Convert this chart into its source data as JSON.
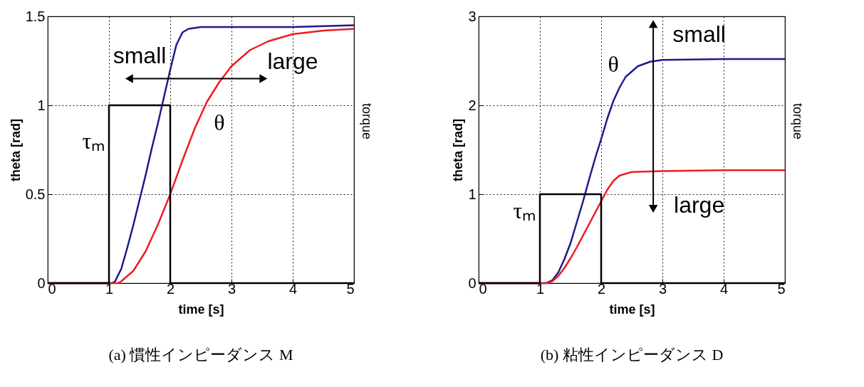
{
  "chart_data": [
    {
      "type": "line",
      "title": "(a) 慣性インピーダンス M",
      "xlabel": "time [s]",
      "ylabel": "theta [rad]",
      "y2label": "torque",
      "xlim": [
        0,
        5
      ],
      "ylim": [
        0,
        1.5
      ],
      "xticks": [
        0,
        1,
        2,
        3,
        4,
        5
      ],
      "yticks": [
        0,
        0.5,
        1,
        1.5
      ],
      "grid": true,
      "series": [
        {
          "color": "#1c1c8c",
          "x": [
            0,
            1,
            1.05,
            1.1,
            1.2,
            1.3,
            1.4,
            1.5,
            1.6,
            1.7,
            1.8,
            1.9,
            2.0,
            2.1,
            2.2,
            2.3,
            2.5,
            3,
            4,
            5
          ],
          "values": [
            0,
            0,
            0,
            0.01,
            0.08,
            0.2,
            0.33,
            0.47,
            0.61,
            0.76,
            0.9,
            1.05,
            1.2,
            1.34,
            1.41,
            1.43,
            1.44,
            1.44,
            1.44,
            1.45
          ]
        },
        {
          "color": "#ee1c24",
          "x": [
            0,
            1,
            1.15,
            1.2,
            1.4,
            1.6,
            1.8,
            2.0,
            2.2,
            2.4,
            2.6,
            2.8,
            3.0,
            3.3,
            3.6,
            4.0,
            4.5,
            5
          ],
          "values": [
            0,
            0,
            0,
            0.01,
            0.07,
            0.18,
            0.33,
            0.5,
            0.69,
            0.87,
            1.02,
            1.13,
            1.22,
            1.31,
            1.36,
            1.4,
            1.42,
            1.43
          ]
        },
        {
          "color": "#000000",
          "x": [
            0,
            1,
            1,
            2,
            2,
            5
          ],
          "values": [
            0,
            0,
            1,
            1,
            0,
            0
          ]
        }
      ],
      "annotations": [
        "small",
        "large",
        "θ",
        "τₘ"
      ]
    },
    {
      "type": "line",
      "title": "(b) 粘性インピーダンス D",
      "xlabel": "time [s]",
      "ylabel": "theta [rad]",
      "y2label": "torque",
      "xlim": [
        0,
        5
      ],
      "ylim": [
        0,
        3
      ],
      "xticks": [
        0,
        1,
        2,
        3,
        4,
        5
      ],
      "yticks": [
        0,
        1,
        2,
        3
      ],
      "grid": true,
      "series": [
        {
          "color": "#1c1c8c",
          "x": [
            0,
            1,
            1.1,
            1.2,
            1.3,
            1.4,
            1.5,
            1.6,
            1.7,
            1.8,
            1.9,
            2.0,
            2.1,
            2.2,
            2.3,
            2.4,
            2.6,
            2.8,
            3.0,
            4,
            5
          ],
          "values": [
            0,
            0,
            0,
            0.03,
            0.12,
            0.27,
            0.45,
            0.68,
            0.91,
            1.16,
            1.4,
            1.62,
            1.85,
            2.05,
            2.2,
            2.32,
            2.44,
            2.49,
            2.51,
            2.52,
            2.52
          ]
        },
        {
          "color": "#ee1c24",
          "x": [
            0,
            1,
            1.1,
            1.2,
            1.3,
            1.4,
            1.5,
            1.6,
            1.7,
            1.8,
            1.9,
            2.0,
            2.1,
            2.2,
            2.3,
            2.5,
            3,
            4,
            5
          ],
          "values": [
            0,
            0,
            0,
            0.02,
            0.08,
            0.17,
            0.28,
            0.4,
            0.53,
            0.66,
            0.79,
            0.92,
            1.05,
            1.15,
            1.21,
            1.25,
            1.26,
            1.27,
            1.27
          ]
        },
        {
          "color": "#000000",
          "x": [
            0,
            1,
            1,
            2,
            2,
            5
          ],
          "values": [
            0,
            0,
            1,
            1,
            0,
            0
          ]
        }
      ],
      "annotations": [
        "small",
        "large",
        "θ",
        "τₘ"
      ]
    }
  ]
}
